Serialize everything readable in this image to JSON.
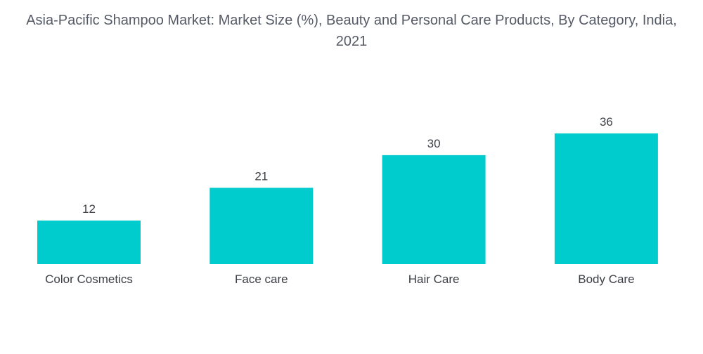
{
  "chart_data": {
    "type": "bar",
    "title": "Asia-Pacific Shampoo Market: Market Size (%), Beauty and Personal Care Products, By Category, India, 2021",
    "categories": [
      "Color Cosmetics",
      "Face care",
      "Hair Care",
      "Body Care"
    ],
    "values": [
      12,
      21,
      30,
      36
    ],
    "xlabel": "",
    "ylabel": "",
    "ylim": [
      0,
      40
    ],
    "grid": false,
    "legend": "none",
    "bar_color": "#00ccce",
    "data_labels": true
  }
}
